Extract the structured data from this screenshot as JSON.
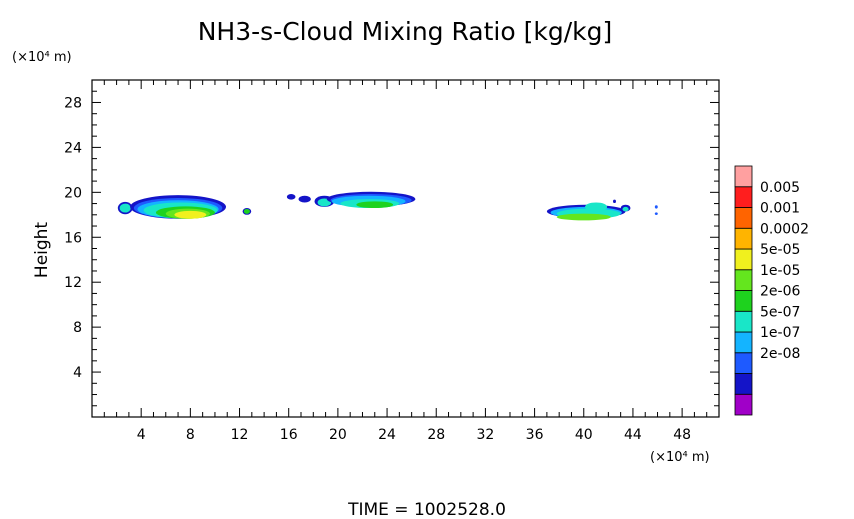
{
  "chart_data": {
    "type": "heatmap",
    "title": "NH3-s-Cloud Mixing Ratio [kg/kg]",
    "ylabel": "Height",
    "y_unit": "(×10⁴ m)",
    "x_unit": "(×10⁴ m)",
    "x_ticks": [
      "4",
      "8",
      "12",
      "16",
      "20",
      "24",
      "28",
      "32",
      "36",
      "40",
      "44",
      "48"
    ],
    "y_ticks": [
      "4",
      "8",
      "12",
      "16",
      "20",
      "24",
      "28"
    ],
    "xlim": [
      0,
      51
    ],
    "ylim": [
      0,
      30
    ],
    "grid": false,
    "colorbar": {
      "labels": [
        "0.005",
        "0.001",
        "0.0002",
        "5e-05",
        "1e-05",
        "2e-06",
        "5e-07",
        "1e-07",
        "2e-08"
      ],
      "colors": [
        "#a000c8",
        "#1414c8",
        "#1e5aff",
        "#14b4ff",
        "#19e6c8",
        "#1ed21e",
        "#64e61e",
        "#f0f01e",
        "#ffb400",
        "#ff6400",
        "#ff1e1e",
        "#ffa0a0"
      ]
    },
    "levels_legend": "lowest to highest",
    "regions": [
      {
        "x": 2.7,
        "y": 18.6,
        "rx": 0.6,
        "ry": 0.55,
        "level": 1
      },
      {
        "x": 2.7,
        "y": 18.6,
        "rx": 0.45,
        "ry": 0.4,
        "level": 4
      },
      {
        "x": 7.0,
        "y": 18.7,
        "rx": 3.9,
        "ry": 1.05,
        "level": 1
      },
      {
        "x": 7.0,
        "y": 18.6,
        "rx": 3.6,
        "ry": 0.9,
        "level": 2
      },
      {
        "x": 7.0,
        "y": 18.5,
        "rx": 3.3,
        "ry": 0.8,
        "level": 3
      },
      {
        "x": 7.2,
        "y": 18.4,
        "rx": 3.0,
        "ry": 0.7,
        "level": 4
      },
      {
        "x": 7.6,
        "y": 18.2,
        "rx": 2.4,
        "ry": 0.55,
        "level": 5
      },
      {
        "x": 7.8,
        "y": 18.1,
        "rx": 1.8,
        "ry": 0.45,
        "level": 6
      },
      {
        "x": 8.0,
        "y": 18.0,
        "rx": 1.3,
        "ry": 0.35,
        "level": 7
      },
      {
        "x": 12.6,
        "y": 18.3,
        "rx": 0.35,
        "ry": 0.3,
        "level": 1
      },
      {
        "x": 12.6,
        "y": 18.3,
        "rx": 0.25,
        "ry": 0.22,
        "level": 5
      },
      {
        "x": 16.2,
        "y": 19.6,
        "rx": 0.35,
        "ry": 0.25,
        "level": 1
      },
      {
        "x": 17.3,
        "y": 19.4,
        "rx": 0.5,
        "ry": 0.3,
        "level": 1
      },
      {
        "x": 18.9,
        "y": 19.2,
        "rx": 0.8,
        "ry": 0.5,
        "level": 1
      },
      {
        "x": 18.9,
        "y": 19.1,
        "rx": 0.55,
        "ry": 0.35,
        "level": 4
      },
      {
        "x": 22.7,
        "y": 19.4,
        "rx": 3.6,
        "ry": 0.65,
        "level": 1
      },
      {
        "x": 22.7,
        "y": 19.3,
        "rx": 3.3,
        "ry": 0.55,
        "level": 2
      },
      {
        "x": 22.5,
        "y": 19.2,
        "rx": 3.0,
        "ry": 0.5,
        "level": 3
      },
      {
        "x": 22.6,
        "y": 19.0,
        "rx": 2.4,
        "ry": 0.4,
        "level": 4
      },
      {
        "x": 23.0,
        "y": 18.9,
        "rx": 1.5,
        "ry": 0.3,
        "level": 5
      },
      {
        "x": 40.2,
        "y": 18.3,
        "rx": 3.2,
        "ry": 0.6,
        "level": 1
      },
      {
        "x": 40.2,
        "y": 18.2,
        "rx": 2.9,
        "ry": 0.5,
        "level": 3
      },
      {
        "x": 40.4,
        "y": 18.1,
        "rx": 2.6,
        "ry": 0.45,
        "level": 4
      },
      {
        "x": 40.0,
        "y": 17.8,
        "rx": 2.2,
        "ry": 0.3,
        "level": 6
      },
      {
        "x": 41.0,
        "y": 18.7,
        "rx": 0.9,
        "ry": 0.4,
        "level": 4
      },
      {
        "x": 43.4,
        "y": 18.6,
        "rx": 0.4,
        "ry": 0.3,
        "level": 1
      },
      {
        "x": 43.4,
        "y": 18.5,
        "rx": 0.25,
        "ry": 0.2,
        "level": 4
      },
      {
        "x": 45.9,
        "y": 18.7,
        "rx": 0.12,
        "ry": 0.15,
        "level": 2
      },
      {
        "x": 45.9,
        "y": 18.1,
        "rx": 0.12,
        "ry": 0.12,
        "level": 2
      },
      {
        "x": 42.5,
        "y": 19.2,
        "rx": 0.12,
        "ry": 0.15,
        "level": 1
      }
    ]
  },
  "footer": {
    "time_label": "TIME  =  1002528.0"
  }
}
